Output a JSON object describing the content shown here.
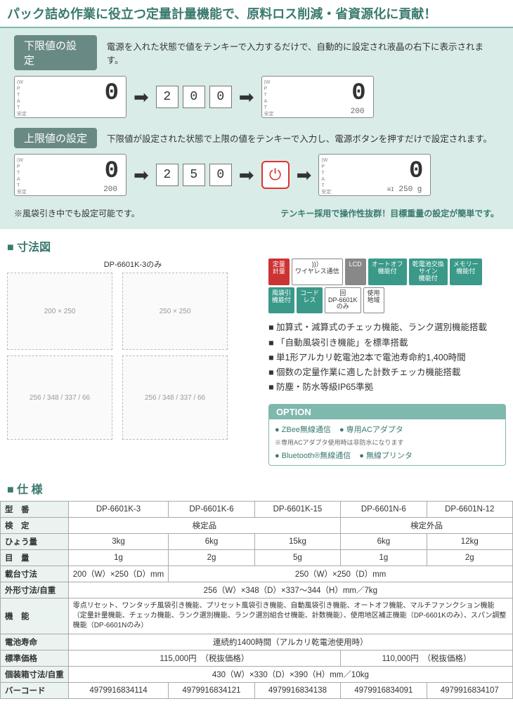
{
  "header": {
    "title": "パック詰め作業に役立つ定量計量機能で、原料ロス削減・省資源化に貢献！"
  },
  "lower": {
    "label": "下限値の設定",
    "desc": "電源を入れた状態で値をテンキーで入力するだけで、自動的に設定され液晶の右下に表示されます。",
    "lcd1_main": "0",
    "lcd1_sub": "",
    "keys": [
      "2",
      "0",
      "0"
    ],
    "lcd2_main": "0",
    "lcd2_sub": "200"
  },
  "upper": {
    "label": "上限値の設定",
    "desc": "下限値が設定された状態で上限の値をテンキーで入力し、電源ボタンを押すだけで設定されます。",
    "lcd1_main": "0",
    "lcd1_sub": "200",
    "keys": [
      "2",
      "5",
      "0"
    ],
    "lcd2_main": "0",
    "lcd2_sub": "250 g"
  },
  "notes": {
    "left": "※風袋引き中でも設定可能です。",
    "right": "テンキー採用で操作性抜群！目標重量の設定が簡単です。"
  },
  "dimensions": {
    "title": "寸法図",
    "variant_label": "DP-6601K-3のみ",
    "d1": "200",
    "d2": "250",
    "d3": "256",
    "d4": "348",
    "d5": "337",
    "d6": "66"
  },
  "badges": [
    {
      "text": "定量\n計量",
      "cls": "red"
    },
    {
      "text": "))）\nワイヤレス通信",
      "cls": ""
    },
    {
      "text": "LCD",
      "cls": "grey"
    },
    {
      "text": "オートオフ\n機能付",
      "cls": "teal"
    },
    {
      "text": "乾電池交換\nサイン\n機能付",
      "cls": "teal"
    },
    {
      "text": "メモリー\n機能付",
      "cls": "teal"
    },
    {
      "text": "風袋引\n機能付",
      "cls": "teal"
    },
    {
      "text": "コード\nレス",
      "cls": "teal"
    },
    {
      "text": "回\nDP-6601K\nのみ",
      "cls": ""
    },
    {
      "text": "使用\n地域",
      "cls": ""
    }
  ],
  "features": [
    "加算式・減算式のチェッカ機能、ランク選別機能搭載",
    "「自動風袋引き機能」を標準搭載",
    "単1形アルカリ乾電池2本で電池寿命約1,400時間",
    "個数の定量作業に適した計数チェッカ機能搭載",
    "防塵・防水等級IP65準拠"
  ],
  "option": {
    "head": "OPTION",
    "items": [
      "ZBee無線通信",
      "専用ACアダプタ",
      "Bluetooth®無線通信",
      "無線プリンタ"
    ],
    "note": "※専用ACアダプタ使用時は非防水になります"
  },
  "spec": {
    "title": "仕 様",
    "cols": [
      "DP-6601K-3",
      "DP-6601K-6",
      "DP-6601K-15",
      "DP-6601N-6",
      "DP-6601N-12"
    ],
    "rows": {
      "model": "型　番",
      "cert": "検　定",
      "cert_a": "検定品",
      "cert_b": "検定外品",
      "cap": "ひょう量",
      "cap_v": [
        "3kg",
        "6kg",
        "15kg",
        "6kg",
        "12kg"
      ],
      "div": "目　量",
      "div_v": [
        "1g",
        "2g",
        "5g",
        "1g",
        "2g"
      ],
      "pan": "載台寸法",
      "pan_a": "200（W）×250（D）mm",
      "pan_b": "250（W）×250（D）mm",
      "outer": "外形寸法/自重",
      "outer_v": "256（W）×348（D）×337～344（H）mm／7kg",
      "func": "機　能",
      "func_v": "零点リセット、ワンタッチ風袋引き機能、プリセット風袋引き機能、自動風袋引き機能、オートオフ機能、マルチファンクション機能（定量計量機能、チェッカ機能、ランク選別機能、ランク選別組合せ機能、計数機能）、使用地区補正機能（DP-6601Kのみ）、スパン調整機能（DP-6601Nのみ）",
      "batt": "電池寿命",
      "batt_v": "連続約1400時間（アルカリ乾電池使用時）",
      "price": "標準価格",
      "price_a": "115,000円　（税抜価格）",
      "price_b": "110,000円　（税抜価格）",
      "pkg": "個装箱寸法/自重",
      "pkg_v": "430（W）×330（D）×390（H）mm／10kg",
      "bar": "バーコード",
      "bar_v": [
        "4979916834114",
        "4979916834121",
        "4979916834138",
        "4979916834091",
        "4979916834107"
      ]
    }
  }
}
